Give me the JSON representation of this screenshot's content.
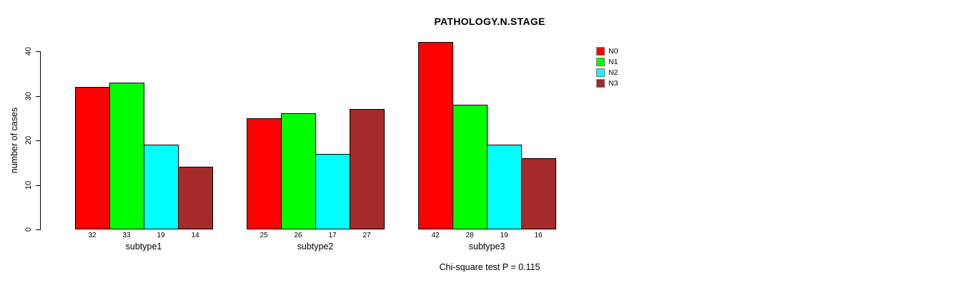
{
  "title": "PATHOLOGY.N.STAGE",
  "y_axis": {
    "label": "number of cases",
    "ticks": [
      0,
      10,
      20,
      30,
      40
    ]
  },
  "legend": {
    "items": [
      {
        "label": "N0",
        "color": "#ff0000"
      },
      {
        "label": "N1",
        "color": "#00ff00"
      },
      {
        "label": "N2",
        "color": "#00ffff"
      },
      {
        "label": "N3",
        "color": "#a52a2a"
      }
    ]
  },
  "footnote": "Chi-square test P = 0.115",
  "chart_data": {
    "type": "bar",
    "title": "PATHOLOGY.N.STAGE",
    "xlabel": "",
    "ylabel": "number of cases",
    "categories": [
      "subtype1",
      "subtype2",
      "subtype3"
    ],
    "series": [
      {
        "name": "N0",
        "color": "#ff0000",
        "values": [
          32,
          25,
          42
        ]
      },
      {
        "name": "N1",
        "color": "#00ff00",
        "values": [
          33,
          26,
          28
        ]
      },
      {
        "name": "N2",
        "color": "#00ffff",
        "values": [
          19,
          17,
          19
        ]
      },
      {
        "name": "N3",
        "color": "#a52a2a",
        "values": [
          14,
          27,
          16
        ]
      }
    ],
    "ylim": [
      0,
      40
    ],
    "yticks": [
      0,
      10,
      20,
      30,
      40
    ],
    "grid": false,
    "legend_position": "top-right",
    "bar_value_labels": true,
    "annotation": "Chi-square test P = 0.115"
  }
}
